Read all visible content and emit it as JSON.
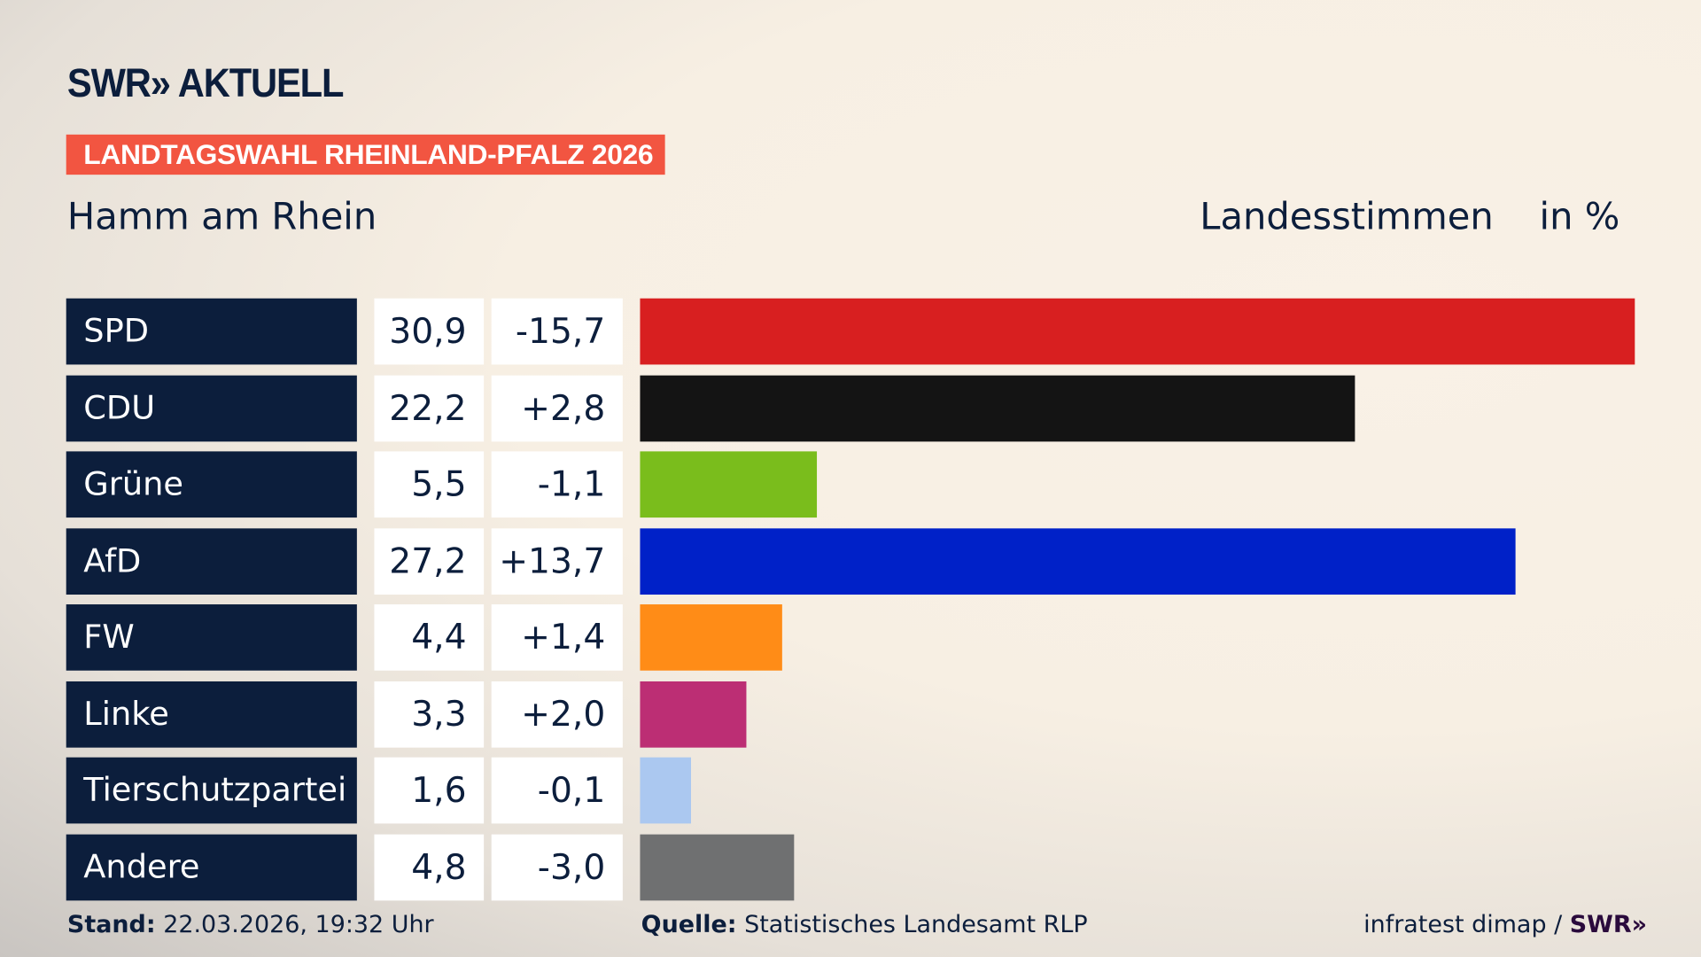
{
  "header": {
    "logo": "SWR» AKTUELL",
    "badge": "LANDTAGSWAHL RHEINLAND-PFALZ 2026",
    "place": "Hamm am Rhein",
    "measure": "Landesstimmen",
    "unit": "in %"
  },
  "chart_data": {
    "type": "bar",
    "orientation": "horizontal",
    "categories": [
      "SPD",
      "CDU",
      "Grüne",
      "AfD",
      "FW",
      "Linke",
      "Tierschutzpartei",
      "Andere"
    ],
    "values": [
      30.9,
      22.2,
      5.5,
      27.2,
      4.4,
      3.3,
      1.6,
      4.8
    ],
    "value_labels": [
      "30,9",
      "22,2",
      "5,5",
      "27,2",
      "4,4",
      "3,3",
      "1,6",
      "4,8"
    ],
    "change_labels": [
      "-15,7",
      "+2,8",
      "-1,1",
      "+13,7",
      "+1,4",
      "+2,0",
      "-0,1",
      "-3,0"
    ],
    "changes": [
      -15.7,
      2.8,
      -1.1,
      13.7,
      1.4,
      2.0,
      -0.1,
      -3.0
    ],
    "colors": [
      "#d81f20",
      "#141414",
      "#7abd1c",
      "#0021c8",
      "#ff8c17",
      "#bc2e74",
      "#abc8f0",
      "#6f7071"
    ]
  },
  "footer": {
    "stand_label": "Stand:",
    "stand": "22.03.2026, 19:32 Uhr",
    "source_label": "Quelle:",
    "source": "Statistisches Landesamt RLP",
    "credit": "infratest dimap /",
    "credit_logo": "SWR»"
  }
}
